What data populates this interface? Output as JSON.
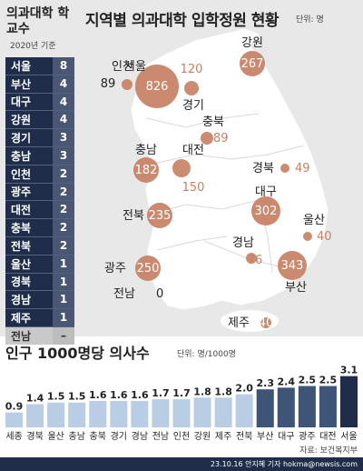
{
  "title": "지역별 의과대학 입학정원 현황",
  "title_unit": "단위: 명",
  "panel": {
    "title": "의과대학 학교수",
    "subtitle": "2020년 기준",
    "rows": [
      {
        "name": "서울",
        "value": "8"
      },
      {
        "name": "부산",
        "value": "4"
      },
      {
        "name": "대구",
        "value": "4"
      },
      {
        "name": "강원",
        "value": "4"
      },
      {
        "name": "경기",
        "value": "3"
      },
      {
        "name": "충남",
        "value": "3"
      },
      {
        "name": "인천",
        "value": "2"
      },
      {
        "name": "광주",
        "value": "2"
      },
      {
        "name": "대전",
        "value": "2"
      },
      {
        "name": "충북",
        "value": "2"
      },
      {
        "name": "전북",
        "value": "2"
      },
      {
        "name": "울산",
        "value": "1"
      },
      {
        "name": "경북",
        "value": "1"
      },
      {
        "name": "경남",
        "value": "1"
      },
      {
        "name": "제주",
        "value": "1"
      },
      {
        "name": "전남",
        "value": "–"
      }
    ]
  },
  "map_regions": {
    "seoul": {
      "name": "서울",
      "value": "826"
    },
    "incheon": {
      "name": "인천",
      "value": "89"
    },
    "gyeonggi": {
      "name": "경기",
      "value": "120"
    },
    "gangwon": {
      "name": "강원",
      "value": "267"
    },
    "chungbuk": {
      "name": "충북",
      "value": "89"
    },
    "chungnam": {
      "name": "충남",
      "value": "182"
    },
    "daejeon": {
      "name": "대전",
      "value": "150"
    },
    "gyeongbuk": {
      "name": "경북",
      "value": "49"
    },
    "daegu": {
      "name": "대구",
      "value": "302"
    },
    "jeonbuk": {
      "name": "전북",
      "value": "235"
    },
    "ulsan": {
      "name": "울산",
      "value": "40"
    },
    "gyeongnam": {
      "name": "경남",
      "value": "76"
    },
    "gwangju": {
      "name": "광주",
      "value": "250"
    },
    "busan": {
      "name": "부산",
      "value": "343"
    },
    "jeonnam": {
      "name": "전남",
      "value": "0"
    },
    "jeju": {
      "name": "제주",
      "value": "40"
    }
  },
  "chart_title": "인구 1000명당 의사수",
  "chart_unit": "단위: 명/1000명",
  "source": "자료: 보건복지부",
  "credit": "23.10.16 안지혜 기자 hokma@newsis.com",
  "colors": {
    "navy": "#1f2d4a",
    "bubble": "#c77f63",
    "bubble_light": "#d39a80",
    "bar_light": "#b9cde4",
    "bar_dark": "#1f2d4a"
  },
  "chart_data": {
    "type": "bar",
    "title": "인구 1000명당 의사수",
    "ylabel": "",
    "xlabel": "",
    "ylim": [
      0,
      3.3
    ],
    "categories": [
      "세종",
      "경북",
      "울산",
      "충남",
      "충북",
      "경기",
      "경남",
      "전남",
      "인천",
      "강원",
      "제주",
      "전북",
      "부산",
      "대구",
      "광주",
      "대전",
      "서울"
    ],
    "values": [
      "0.9",
      "1.4",
      "1.5",
      "1.5",
      "1.6",
      "1.6",
      "1.6",
      "1.7",
      "1.7",
      "1.8",
      "1.8",
      "2.0",
      "2.3",
      "2.4",
      "2.5",
      "2.5",
      "3.1"
    ]
  }
}
